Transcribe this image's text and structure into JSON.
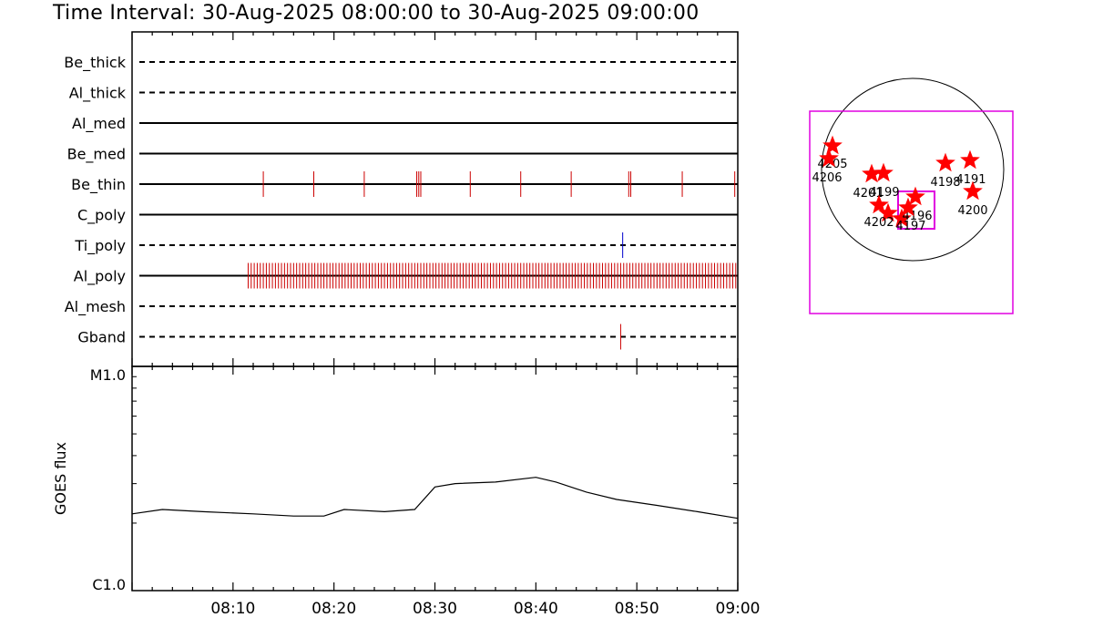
{
  "title": "Time Interval: 30-Aug-2025 08:00:00 to 30-Aug-2025 09:00:00",
  "chart_data": [
    {
      "type": "event-timeline",
      "x_range": [
        "08:00",
        "09:00"
      ],
      "channels": [
        {
          "name": "Be_thick",
          "style": "dashed",
          "events": []
        },
        {
          "name": "Al_thick",
          "style": "dashed",
          "events": []
        },
        {
          "name": "Al_med",
          "style": "solid",
          "events": []
        },
        {
          "name": "Be_med",
          "style": "solid",
          "events": []
        },
        {
          "name": "Be_thin",
          "style": "solid",
          "color": "#cc0000",
          "events": [
            "08:13",
            "08:18",
            "08:23",
            "08:28.2",
            "08:28.4",
            "08:28.6",
            "08:33.5",
            "08:38.5",
            "08:43.5",
            "08:49.2",
            "08:49.4",
            "08:54.5",
            "08:59.7"
          ]
        },
        {
          "name": "C_poly",
          "style": "solid",
          "events": []
        },
        {
          "name": "Ti_poly",
          "style": "dashed",
          "color": "#0000cc",
          "events": [
            "08:48.6"
          ]
        },
        {
          "name": "Al_poly",
          "style": "solid",
          "color": "#cc0000",
          "event_range": [
            "08:11.5",
            "09:00"
          ],
          "event_step_min": 0.3
        },
        {
          "name": "Al_mesh",
          "style": "dashed",
          "events": []
        },
        {
          "name": "Gband",
          "style": "dashed",
          "color": "#cc0000",
          "events": [
            "08:48.4"
          ]
        }
      ]
    },
    {
      "type": "line",
      "ylabel": "GOES flux",
      "y_scale": "log",
      "ylim": [
        "C1.0",
        "M1.0"
      ],
      "y_tick_labels": [
        "M1.0",
        "C1.0"
      ],
      "x_tick_labels": [
        "08:10",
        "08:20",
        "08:30",
        "08:40",
        "08:50",
        "09:00"
      ],
      "x": [
        "08:00",
        "08:03",
        "08:07",
        "08:12",
        "08:16",
        "08:19",
        "08:21",
        "08:25",
        "08:28",
        "08:30",
        "08:32",
        "08:36",
        "08:40",
        "08:42",
        "08:45",
        "08:48",
        "08:52",
        "08:56",
        "09:00"
      ],
      "series": [
        {
          "values": [
            2.2,
            2.3,
            2.25,
            2.2,
            2.15,
            2.15,
            2.3,
            2.25,
            2.3,
            2.9,
            3.0,
            3.05,
            3.2,
            3.05,
            2.75,
            2.55,
            2.4,
            2.25,
            2.1
          ]
        }
      ]
    },
    {
      "type": "scatter",
      "points": [
        {
          "label": "4205"
        },
        {
          "label": "4206"
        },
        {
          "label": "4201"
        },
        {
          "label": "4199"
        },
        {
          "label": "4198"
        },
        {
          "label": "4191"
        },
        {
          "label": "4200"
        },
        {
          "label": "4202"
        },
        {
          "label": "4196"
        },
        {
          "label": "4197"
        }
      ]
    }
  ]
}
